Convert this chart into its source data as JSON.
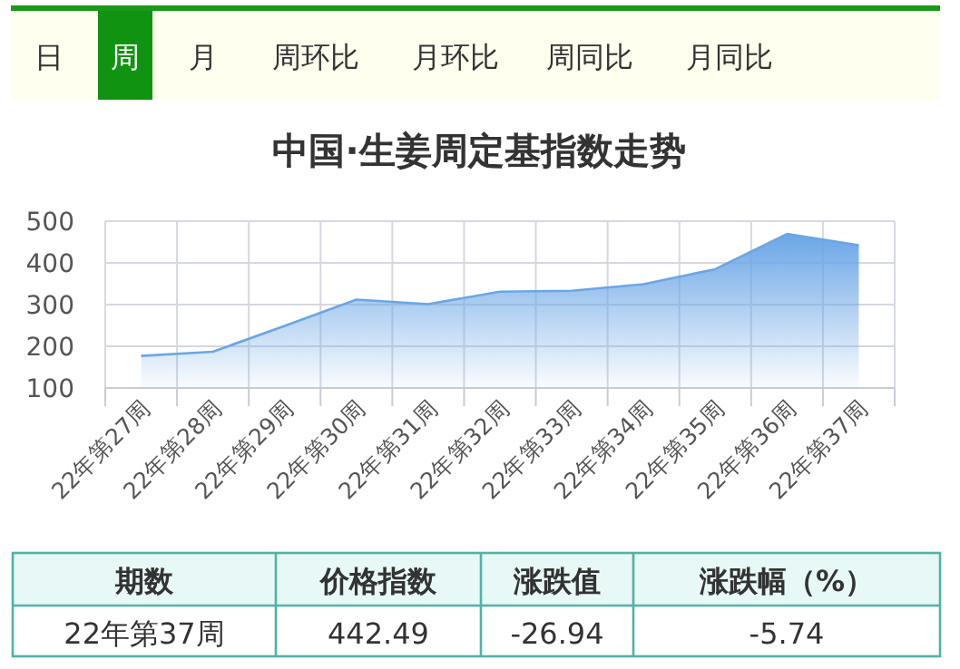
{
  "chart_data": {
    "type": "area",
    "title": "中国·生姜周定基指数走势",
    "categories": [
      "22年第27周",
      "22年第28周",
      "22年第29周",
      "22年第30周",
      "22年第31周",
      "22年第32周",
      "22年第33周",
      "22年第34周",
      "22年第35周",
      "22年第36周",
      "22年第37周"
    ],
    "values": [
      177,
      187,
      249,
      312,
      301,
      331,
      333,
      349,
      385,
      469.43,
      442.49
    ],
    "color": "#6aa6e6",
    "ylim": [
      100,
      500
    ],
    "yticks": [
      100,
      200,
      300,
      400,
      500
    ],
    "grid": true,
    "annotations": [
      "日",
      "周",
      "月",
      "周环比",
      "月环比",
      "周同比",
      "月同比",
      "期数",
      "价格指数",
      "涨跌值",
      "涨跌幅（%）",
      "22年第37周",
      "442.49",
      "-26.94",
      "-5.74"
    ]
  }
}
